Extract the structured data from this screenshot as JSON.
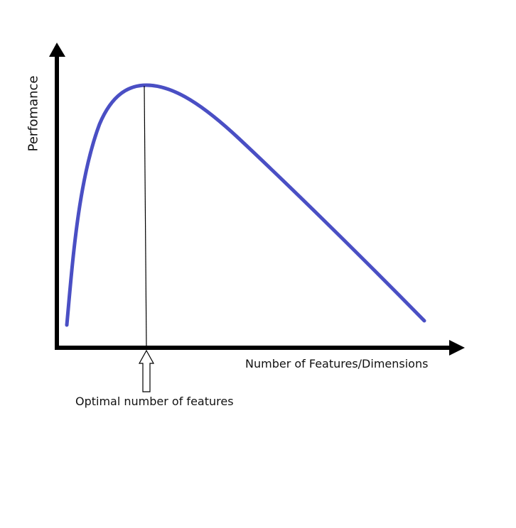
{
  "diagram": {
    "y_axis_label": "Perfomance",
    "x_axis_label": "Number of Features/Dimensions",
    "annotation_label": "Optimal number of features"
  },
  "colors": {
    "curve": "#4a4fc4",
    "axes": "#000000",
    "guide_line": "#000000"
  },
  "icons": {
    "x_axis_arrow": "arrowhead-right",
    "y_axis_arrow": "arrowhead-up",
    "pointer_arrow": "hollow-up-arrow"
  }
}
